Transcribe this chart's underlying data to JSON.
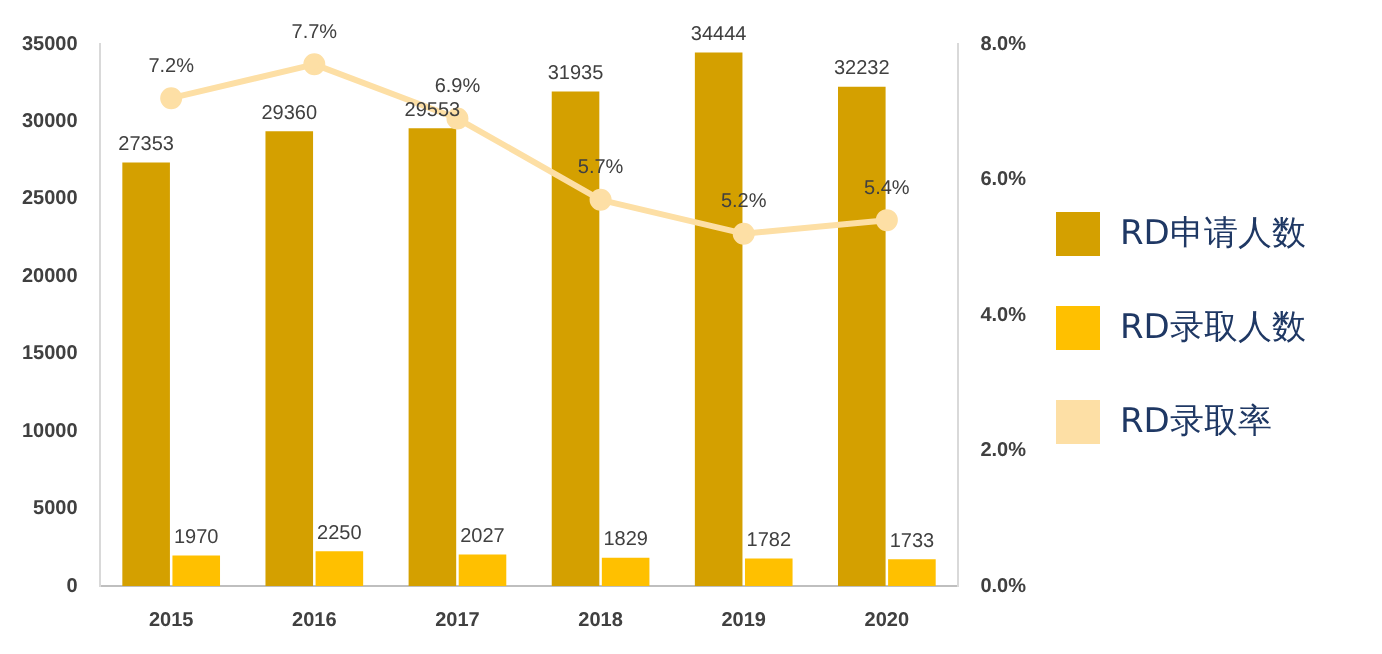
{
  "chart_data": {
    "type": "bar",
    "categories": [
      "2015",
      "2016",
      "2017",
      "2018",
      "2019",
      "2020"
    ],
    "series": [
      {
        "name": "RD申请人数",
        "color": "#d4a000",
        "values": [
          27353,
          29360,
          29553,
          31935,
          34444,
          32232
        ]
      },
      {
        "name": "RD录取人数",
        "color": "#ffc000",
        "values": [
          1970,
          2250,
          2027,
          1829,
          1782,
          1733
        ]
      },
      {
        "name": "RD录取率",
        "type": "line",
        "axis": "y2",
        "color": "#fddfa5",
        "values": [
          7.2,
          7.7,
          6.9,
          5.7,
          5.2,
          5.4
        ],
        "value_labels": [
          "7.2%",
          "7.7%",
          "6.9%",
          "5.7%",
          "5.2%",
          "5.4%"
        ]
      }
    ],
    "ylim": [
      0,
      35000
    ],
    "yticks": [
      0,
      5000,
      10000,
      15000,
      20000,
      25000,
      30000,
      35000
    ],
    "y2lim": [
      0,
      8
    ],
    "y2ticks": [
      {
        "value": 0,
        "label": "0.0%"
      },
      {
        "value": 2,
        "label": "2.0%"
      },
      {
        "value": 4,
        "label": "4.0%"
      },
      {
        "value": 6,
        "label": "6.0%"
      },
      {
        "value": 8,
        "label": "8.0%"
      }
    ],
    "data_labels": true,
    "grid": false,
    "legend": "right",
    "marker": "circle"
  }
}
